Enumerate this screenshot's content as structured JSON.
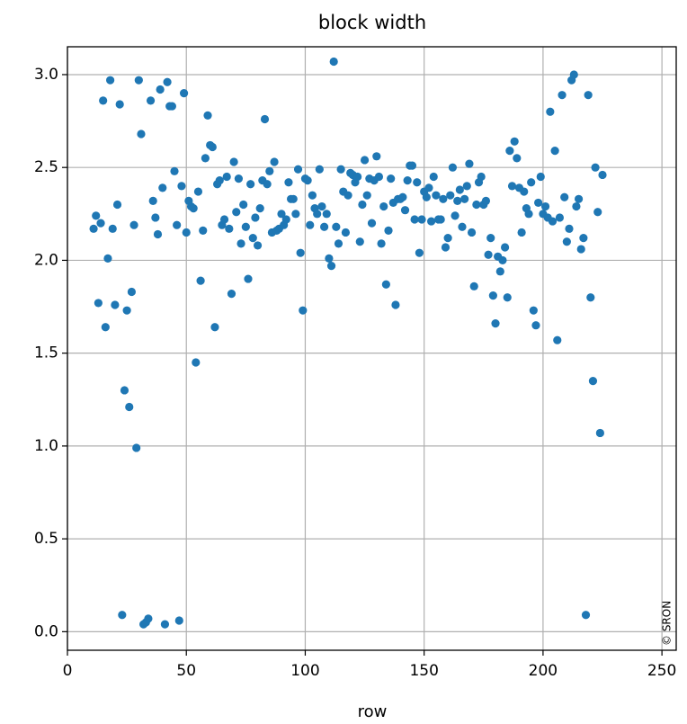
{
  "chart_data": {
    "type": "scatter",
    "title": "block width",
    "x_label": "row",
    "annotation": "© SRON",
    "color": "#1f77b4",
    "grid": true,
    "xlim": [
      0,
      256
    ],
    "ylim": [
      -0.1,
      3.15
    ],
    "xticks": [
      0,
      50,
      100,
      150,
      200,
      250
    ],
    "yticks": [
      {
        "value": 0,
        "label": "0.0"
      },
      0.5,
      {
        "value": 1,
        "label": "1.0"
      },
      1.5,
      {
        "value": 2,
        "label": "2.0"
      },
      2.5,
      {
        "value": 3,
        "label": "3.0"
      }
    ],
    "x": [
      11,
      12,
      13,
      14,
      15,
      16,
      17,
      18,
      19,
      20,
      21,
      22,
      23,
      24,
      25,
      26,
      27,
      28,
      29,
      30,
      31,
      32,
      33,
      34,
      35,
      36,
      37,
      38,
      39,
      40,
      41,
      42,
      43,
      44,
      45,
      46,
      47,
      48,
      49,
      50,
      51,
      52,
      53,
      54,
      55,
      56,
      57,
      58,
      59,
      60,
      61,
      62,
      63,
      64,
      65,
      66,
      67,
      68,
      69,
      70,
      71,
      72,
      73,
      74,
      75,
      76,
      77,
      78,
      79,
      80,
      81,
      82,
      83,
      84,
      85,
      86,
      87,
      88,
      89,
      90,
      91,
      92,
      93,
      94,
      95,
      96,
      97,
      98,
      99,
      100,
      101,
      102,
      103,
      104,
      105,
      106,
      107,
      108,
      109,
      110,
      111,
      112,
      113,
      114,
      115,
      116,
      117,
      118,
      119,
      120,
      121,
      122,
      123,
      124,
      125,
      126,
      127,
      128,
      129,
      130,
      131,
      132,
      133,
      134,
      135,
      136,
      137,
      138,
      139,
      140,
      141,
      142,
      143,
      144,
      145,
      146,
      147,
      148,
      149,
      150,
      151,
      152,
      153,
      154,
      155,
      156,
      157,
      158,
      159,
      160,
      161,
      162,
      163,
      164,
      165,
      166,
      167,
      168,
      169,
      170,
      171,
      172,
      173,
      174,
      175,
      176,
      177,
      178,
      179,
      180,
      181,
      182,
      183,
      184,
      185,
      186,
      187,
      188,
      189,
      190,
      191,
      192,
      193,
      194,
      195,
      196,
      197,
      198,
      199,
      200,
      201,
      202,
      203,
      204,
      205,
      206,
      207,
      208,
      209,
      210,
      211,
      212,
      213,
      214,
      215,
      216,
      217,
      218,
      219,
      220,
      221,
      222,
      223,
      224,
      225
    ],
    "values": [
      2.17,
      2.24,
      1.77,
      2.2,
      2.86,
      1.64,
      2.01,
      2.97,
      2.17,
      1.76,
      2.3,
      2.84,
      0.09,
      1.3,
      1.73,
      1.21,
      1.83,
      2.19,
      0.99,
      2.97,
      2.68,
      0.04,
      0.05,
      0.07,
      2.86,
      2.32,
      2.23,
      2.14,
      2.92,
      2.39,
      0.04,
      2.96,
      2.83,
      2.83,
      2.48,
      2.19,
      0.06,
      2.4,
      2.9,
      2.15,
      2.32,
      2.29,
      2.28,
      1.45,
      2.37,
      1.89,
      2.16,
      2.55,
      2.78,
      2.62,
      2.61,
      1.64,
      2.41,
      2.43,
      2.19,
      2.22,
      2.45,
      2.17,
      1.82,
      2.53,
      2.26,
      2.44,
      2.09,
      2.3,
      2.18,
      1.9,
      2.41,
      2.12,
      2.23,
      2.08,
      2.28,
      2.43,
      2.76,
      2.41,
      2.48,
      2.15,
      2.53,
      2.16,
      2.17,
      2.25,
      2.19,
      2.22,
      2.42,
      2.33,
      2.33,
      2.25,
      2.49,
      2.04,
      1.73,
      2.44,
      2.43,
      2.19,
      2.35,
      2.28,
      2.25,
      2.49,
      2.29,
      2.18,
      2.25,
      2.01,
      1.97,
      3.07,
      2.18,
      2.09,
      2.49,
      2.37,
      2.15,
      2.35,
      2.47,
      2.46,
      2.42,
      2.45,
      2.1,
      2.3,
      2.54,
      2.35,
      2.44,
      2.2,
      2.43,
      2.56,
      2.45,
      2.09,
      2.29,
      1.87,
      2.16,
      2.44,
      2.31,
      1.76,
      2.33,
      2.33,
      2.34,
      2.27,
      2.43,
      2.51,
      2.51,
      2.22,
      2.42,
      2.04,
      2.22,
      2.37,
      2.34,
      2.39,
      2.21,
      2.45,
      2.35,
      2.22,
      2.22,
      2.33,
      2.07,
      2.12,
      2.35,
      2.5,
      2.24,
      2.32,
      2.38,
      2.18,
      2.33,
      2.4,
      2.52,
      2.15,
      1.86,
      2.3,
      2.42,
      2.45,
      2.3,
      2.32,
      2.03,
      2.12,
      1.81,
      1.66,
      2.02,
      1.94,
      2.0,
      2.07,
      1.8,
      2.59,
      2.4,
      2.64,
      2.55,
      2.39,
      2.15,
      2.37,
      2.28,
      2.25,
      2.42,
      1.73,
      1.65,
      2.31,
      2.45,
      2.25,
      2.29,
      2.23,
      2.8,
      2.21,
      2.59,
      1.57,
      2.23,
      2.89,
      2.34,
      2.1,
      2.17,
      2.97,
      3.0,
      2.29,
      2.33,
      2.06,
      2.12,
      0.09,
      2.89,
      1.8,
      1.35,
      2.5,
      2.26,
      1.07,
      2.46
    ]
  }
}
